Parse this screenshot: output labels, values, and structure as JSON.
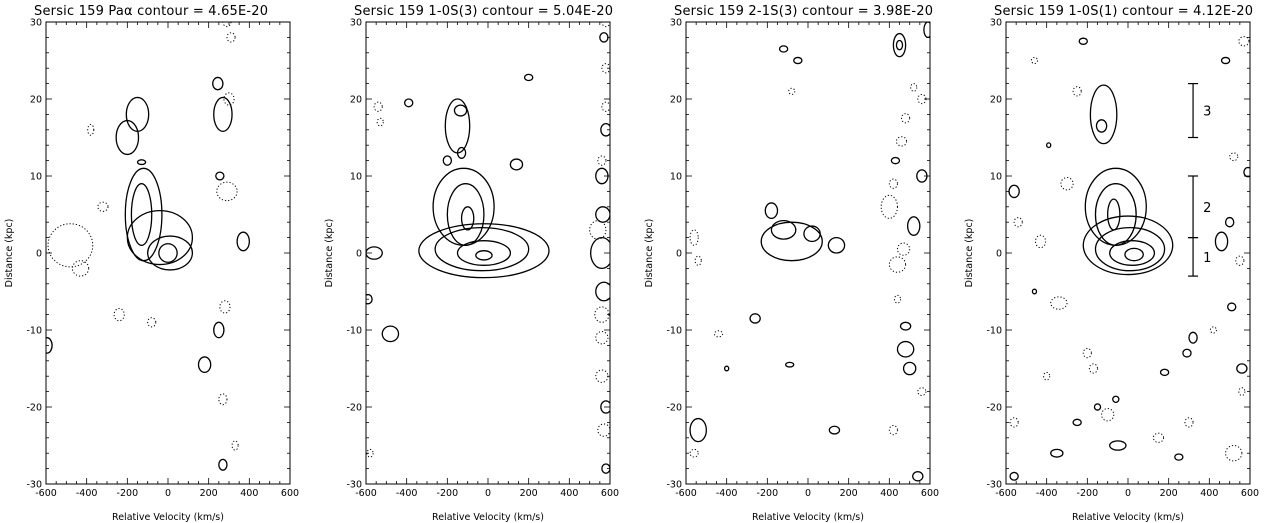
{
  "chart_data": [
    {
      "type": "contour",
      "title": "Sersic 159 Paα contour =  4.65E-20",
      "xlabel": "Relative Velocity (km/s)",
      "ylabel": "Distance (kpc)",
      "xlim": [
        -600,
        600
      ],
      "ylim": [
        -30,
        30
      ],
      "xticks": [
        "-600",
        "-400",
        "-200",
        "0",
        "200",
        "400",
        "600"
      ],
      "yticks": [
        "30",
        "20",
        "10",
        "0",
        "-10",
        "-20",
        "-30"
      ],
      "solid_contours": [
        {
          "cx": 0,
          "cy": 0,
          "rx": 45,
          "ry": 1.2
        },
        {
          "cx": 10,
          "cy": 0,
          "rx": 110,
          "ry": 2.2
        },
        {
          "cx": -40,
          "cy": 2,
          "rx": 160,
          "ry": 3.5
        },
        {
          "cx": -130,
          "cy": 5,
          "rx": 50,
          "ry": 4
        },
        {
          "cx": -120,
          "cy": 5,
          "rx": 90,
          "ry": 6
        },
        {
          "cx": -150,
          "cy": 18,
          "rx": 55,
          "ry": 2.2
        },
        {
          "cx": -200,
          "cy": 15,
          "rx": 55,
          "ry": 2.2
        },
        {
          "cx": -130,
          "cy": 11.8,
          "rx": 20,
          "ry": 0.3
        },
        {
          "cx": 270,
          "cy": 18,
          "rx": 45,
          "ry": 2.2
        },
        {
          "cx": 245,
          "cy": 22,
          "rx": 25,
          "ry": 0.8
        },
        {
          "cx": 255,
          "cy": 10,
          "rx": 20,
          "ry": 0.5
        },
        {
          "cx": 370,
          "cy": 1.5,
          "rx": 30,
          "ry": 1.2
        },
        {
          "cx": 250,
          "cy": -10,
          "rx": 25,
          "ry": 1
        },
        {
          "cx": 180,
          "cy": -14.5,
          "rx": 30,
          "ry": 1
        },
        {
          "cx": 270,
          "cy": -27.5,
          "rx": 20,
          "ry": 0.7
        },
        {
          "cx": -595,
          "cy": -12,
          "rx": 25,
          "ry": 1
        }
      ],
      "dotted_contours": [
        {
          "cx": -480,
          "cy": 1,
          "rx": 110,
          "ry": 2.8
        },
        {
          "cx": -430,
          "cy": -2,
          "rx": 40,
          "ry": 1
        },
        {
          "cx": -320,
          "cy": 6,
          "rx": 25,
          "ry": 0.6
        },
        {
          "cx": -380,
          "cy": 16,
          "rx": 15,
          "ry": 0.7
        },
        {
          "cx": -240,
          "cy": -8,
          "rx": 25,
          "ry": 0.8
        },
        {
          "cx": -80,
          "cy": -9,
          "rx": 20,
          "ry": 0.6
        },
        {
          "cx": 290,
          "cy": 8,
          "rx": 50,
          "ry": 1.2
        },
        {
          "cx": 300,
          "cy": 20,
          "rx": 25,
          "ry": 0.8
        },
        {
          "cx": 310,
          "cy": 28,
          "rx": 20,
          "ry": 0.6
        },
        {
          "cx": 290,
          "cy": 30,
          "rx": 20,
          "ry": 0.6
        },
        {
          "cx": 280,
          "cy": -7,
          "rx": 25,
          "ry": 0.8
        },
        {
          "cx": 270,
          "cy": -19,
          "rx": 20,
          "ry": 0.7
        },
        {
          "cx": 330,
          "cy": -25,
          "rx": 15,
          "ry": 0.6
        }
      ]
    },
    {
      "type": "contour",
      "title": "Sersic 159 1-0S(3) contour =  5.04E-20",
      "xlabel": "Relative Velocity (km/s)",
      "ylabel": "Distance (kpc)",
      "xlim": [
        -600,
        600
      ],
      "ylim": [
        -30,
        30
      ],
      "xticks": [
        "-600",
        "-400",
        "-200",
        "0",
        "200",
        "400",
        "600"
      ],
      "yticks": [
        "30",
        "20",
        "10",
        "0",
        "-10",
        "-20",
        "-30"
      ],
      "solid_contours": [
        {
          "cx": -20,
          "cy": -0.3,
          "rx": 40,
          "ry": 0.6
        },
        {
          "cx": -20,
          "cy": 0,
          "rx": 130,
          "ry": 1.6
        },
        {
          "cx": -30,
          "cy": 0.5,
          "rx": 230,
          "ry": 2.8
        },
        {
          "cx": -20,
          "cy": 0.3,
          "rx": 320,
          "ry": 3.5
        },
        {
          "cx": -100,
          "cy": 4.5,
          "rx": 30,
          "ry": 1.5
        },
        {
          "cx": -110,
          "cy": 5,
          "rx": 90,
          "ry": 4
        },
        {
          "cx": -120,
          "cy": 6,
          "rx": 150,
          "ry": 5
        },
        {
          "cx": -135,
          "cy": 18.5,
          "rx": 30,
          "ry": 0.7
        },
        {
          "cx": -150,
          "cy": 16.5,
          "rx": 60,
          "ry": 3.5
        },
        {
          "cx": -200,
          "cy": 12,
          "rx": 20,
          "ry": 0.6
        },
        {
          "cx": -130,
          "cy": 13,
          "rx": 20,
          "ry": 0.7
        },
        {
          "cx": 140,
          "cy": 11.5,
          "rx": 30,
          "ry": 0.7
        },
        {
          "cx": -390,
          "cy": 19.5,
          "rx": 20,
          "ry": 0.5
        },
        {
          "cx": 200,
          "cy": 22.8,
          "rx": 20,
          "ry": 0.4
        },
        {
          "cx": -560,
          "cy": 0,
          "rx": 40,
          "ry": 0.8
        },
        {
          "cx": -590,
          "cy": -6,
          "rx": 20,
          "ry": 0.6
        },
        {
          "cx": -480,
          "cy": -10.5,
          "rx": 40,
          "ry": 1
        },
        {
          "cx": 560,
          "cy": 0,
          "rx": 55,
          "ry": 2
        },
        {
          "cx": 570,
          "cy": -5,
          "rx": 40,
          "ry": 1.2
        },
        {
          "cx": 565,
          "cy": 5,
          "rx": 35,
          "ry": 1
        },
        {
          "cx": 560,
          "cy": 10,
          "rx": 30,
          "ry": 1
        },
        {
          "cx": 580,
          "cy": 16,
          "rx": 25,
          "ry": 0.8
        },
        {
          "cx": 570,
          "cy": 28,
          "rx": 20,
          "ry": 0.6
        },
        {
          "cx": 580,
          "cy": -20,
          "rx": 25,
          "ry": 0.8
        },
        {
          "cx": 580,
          "cy": -28,
          "rx": 20,
          "ry": 0.6
        }
      ],
      "dotted_contours": [
        {
          "cx": -540,
          "cy": 19,
          "rx": 20,
          "ry": 0.6
        },
        {
          "cx": -530,
          "cy": 17,
          "rx": 15,
          "ry": 0.5
        },
        {
          "cx": 540,
          "cy": 3,
          "rx": 40,
          "ry": 1.2
        },
        {
          "cx": 560,
          "cy": -8,
          "rx": 35,
          "ry": 1
        },
        {
          "cx": 560,
          "cy": -11,
          "rx": 30,
          "ry": 0.8
        },
        {
          "cx": 580,
          "cy": 24,
          "rx": 20,
          "ry": 0.6
        },
        {
          "cx": 580,
          "cy": 19,
          "rx": 20,
          "ry": 0.6
        },
        {
          "cx": 560,
          "cy": -16,
          "rx": 30,
          "ry": 0.8
        },
        {
          "cx": 570,
          "cy": -23,
          "rx": 30,
          "ry": 0.8
        },
        {
          "cx": 560,
          "cy": 12,
          "rx": 20,
          "ry": 0.6
        },
        {
          "cx": 580,
          "cy": 30,
          "rx": 20,
          "ry": 0.6
        },
        {
          "cx": -580,
          "cy": -26,
          "rx": 15,
          "ry": 0.5
        }
      ]
    },
    {
      "type": "contour",
      "title": "Sersic 159 2-1S(3) contour =  3.98E-20",
      "xlabel": "Relative Velocity (km/s)",
      "ylabel": "Distance (kpc)",
      "xlim": [
        -600,
        600
      ],
      "ylim": [
        -30,
        30
      ],
      "xticks": [
        "-600",
        "-400",
        "-200",
        "0",
        "200",
        "400",
        "600"
      ],
      "yticks": [
        "30",
        "20",
        "10",
        "0",
        "-10",
        "-20",
        "-30"
      ],
      "solid_contours": [
        {
          "cx": -80,
          "cy": 1.5,
          "rx": 150,
          "ry": 2.5
        },
        {
          "cx": -120,
          "cy": 3,
          "rx": 60,
          "ry": 1.2
        },
        {
          "cx": -180,
          "cy": 5.5,
          "rx": 30,
          "ry": 1
        },
        {
          "cx": 20,
          "cy": 2.5,
          "rx": 40,
          "ry": 1
        },
        {
          "cx": 140,
          "cy": 1,
          "rx": 40,
          "ry": 1
        },
        {
          "cx": 450,
          "cy": 27,
          "rx": 30,
          "ry": 1.5
        },
        {
          "cx": 450,
          "cy": 27,
          "rx": 15,
          "ry": 0.6
        },
        {
          "cx": -120,
          "cy": 26.5,
          "rx": 20,
          "ry": 0.4
        },
        {
          "cx": -50,
          "cy": 25,
          "rx": 20,
          "ry": 0.4
        },
        {
          "cx": 590,
          "cy": 29,
          "rx": 20,
          "ry": 1
        },
        {
          "cx": 430,
          "cy": 12,
          "rx": 20,
          "ry": 0.4
        },
        {
          "cx": 560,
          "cy": 10,
          "rx": 25,
          "ry": 0.8
        },
        {
          "cx": 520,
          "cy": 3.5,
          "rx": 30,
          "ry": 1.2
        },
        {
          "cx": 480,
          "cy": -12.5,
          "rx": 40,
          "ry": 1
        },
        {
          "cx": 500,
          "cy": -15,
          "rx": 30,
          "ry": 0.8
        },
        {
          "cx": 480,
          "cy": -9.5,
          "rx": 25,
          "ry": 0.5
        },
        {
          "cx": -260,
          "cy": -8.5,
          "rx": 25,
          "ry": 0.6
        },
        {
          "cx": -540,
          "cy": -23,
          "rx": 40,
          "ry": 1.5
        },
        {
          "cx": -90,
          "cy": -14.5,
          "rx": 20,
          "ry": 0.3
        },
        {
          "cx": 130,
          "cy": -23,
          "rx": 25,
          "ry": 0.5
        },
        {
          "cx": 540,
          "cy": -29,
          "rx": 25,
          "ry": 0.6
        },
        {
          "cx": -400,
          "cy": -15,
          "rx": 10,
          "ry": 0.3
        }
      ],
      "dotted_contours": [
        {
          "cx": 440,
          "cy": -1.5,
          "rx": 40,
          "ry": 1
        },
        {
          "cx": 470,
          "cy": 0.5,
          "rx": 30,
          "ry": 0.8
        },
        {
          "cx": 400,
          "cy": 6,
          "rx": 40,
          "ry": 1.5
        },
        {
          "cx": -560,
          "cy": 2,
          "rx": 20,
          "ry": 1
        },
        {
          "cx": -540,
          "cy": -1,
          "rx": 15,
          "ry": 0.6
        },
        {
          "cx": -440,
          "cy": -10.5,
          "rx": 20,
          "ry": 0.4
        },
        {
          "cx": 460,
          "cy": 14.5,
          "rx": 25,
          "ry": 0.6
        },
        {
          "cx": 480,
          "cy": 17.5,
          "rx": 20,
          "ry": 0.6
        },
        {
          "cx": 560,
          "cy": 20,
          "rx": 20,
          "ry": 0.6
        },
        {
          "cx": 420,
          "cy": 9,
          "rx": 20,
          "ry": 0.6
        },
        {
          "cx": 440,
          "cy": -6,
          "rx": 15,
          "ry": 0.5
        },
        {
          "cx": 560,
          "cy": -18,
          "rx": 20,
          "ry": 0.5
        },
        {
          "cx": 420,
          "cy": -23,
          "rx": 20,
          "ry": 0.6
        },
        {
          "cx": -560,
          "cy": -26,
          "rx": 20,
          "ry": 0.5
        },
        {
          "cx": 520,
          "cy": 21.5,
          "rx": 15,
          "ry": 0.5
        },
        {
          "cx": -80,
          "cy": 21,
          "rx": 15,
          "ry": 0.4
        }
      ]
    },
    {
      "type": "contour",
      "title": "Sersic 159 1-0S(1) contour =  4.12E-20",
      "xlabel": "Relative Velocity (km/s)",
      "ylabel": "Distance (kpc)",
      "xlim": [
        -600,
        600
      ],
      "ylim": [
        -30,
        30
      ],
      "xticks": [
        "-600",
        "-400",
        "-200",
        "0",
        "200",
        "400",
        "600"
      ],
      "yticks": [
        "30",
        "20",
        "10",
        "0",
        "-10",
        "-20",
        "-30"
      ],
      "solid_contours": [
        {
          "cx": 30,
          "cy": -0.2,
          "rx": 45,
          "ry": 0.8
        },
        {
          "cx": 20,
          "cy": 0,
          "rx": 110,
          "ry": 1.6
        },
        {
          "cx": 10,
          "cy": 0.5,
          "rx": 170,
          "ry": 2.8
        },
        {
          "cx": 0,
          "cy": 1,
          "rx": 220,
          "ry": 3.8
        },
        {
          "cx": -70,
          "cy": 5,
          "rx": 30,
          "ry": 2
        },
        {
          "cx": -60,
          "cy": 5,
          "rx": 100,
          "ry": 4
        },
        {
          "cx": -60,
          "cy": 6,
          "rx": 150,
          "ry": 5
        },
        {
          "cx": -120,
          "cy": 18,
          "rx": 65,
          "ry": 3.8
        },
        {
          "cx": -130,
          "cy": 16.5,
          "rx": 25,
          "ry": 0.8
        },
        {
          "cx": -220,
          "cy": 27.5,
          "rx": 20,
          "ry": 0.4
        },
        {
          "cx": 480,
          "cy": 25,
          "rx": 20,
          "ry": 0.4
        },
        {
          "cx": 460,
          "cy": 1.5,
          "rx": 30,
          "ry": 1.2
        },
        {
          "cx": 500,
          "cy": 4,
          "rx": 20,
          "ry": 0.6
        },
        {
          "cx": 590,
          "cy": 10.5,
          "rx": 20,
          "ry": 0.6
        },
        {
          "cx": -390,
          "cy": 14,
          "rx": 10,
          "ry": 0.3
        },
        {
          "cx": 510,
          "cy": -7,
          "rx": 20,
          "ry": 0.5
        },
        {
          "cx": 320,
          "cy": -11,
          "rx": 20,
          "ry": 0.7
        },
        {
          "cx": 290,
          "cy": -13,
          "rx": 20,
          "ry": 0.5
        },
        {
          "cx": 560,
          "cy": -15,
          "rx": 25,
          "ry": 0.6
        },
        {
          "cx": 180,
          "cy": -15.5,
          "rx": 20,
          "ry": 0.4
        },
        {
          "cx": -60,
          "cy": -19,
          "rx": 15,
          "ry": 0.4
        },
        {
          "cx": -150,
          "cy": -20,
          "rx": 15,
          "ry": 0.4
        },
        {
          "cx": -250,
          "cy": -22,
          "rx": 20,
          "ry": 0.4
        },
        {
          "cx": -50,
          "cy": -25,
          "rx": 40,
          "ry": 0.6
        },
        {
          "cx": -350,
          "cy": -26,
          "rx": 30,
          "ry": 0.5
        },
        {
          "cx": 250,
          "cy": -26.5,
          "rx": 20,
          "ry": 0.4
        },
        {
          "cx": -560,
          "cy": -29,
          "rx": 20,
          "ry": 0.5
        },
        {
          "cx": -460,
          "cy": -5,
          "rx": 10,
          "ry": 0.3
        },
        {
          "cx": -560,
          "cy": 8,
          "rx": 25,
          "ry": 0.8
        }
      ],
      "dotted_contours": [
        {
          "cx": -340,
          "cy": -6.5,
          "rx": 40,
          "ry": 0.8
        },
        {
          "cx": -300,
          "cy": 9,
          "rx": 30,
          "ry": 0.8
        },
        {
          "cx": -460,
          "cy": 25,
          "rx": 15,
          "ry": 0.4
        },
        {
          "cx": 520,
          "cy": 12.5,
          "rx": 20,
          "ry": 0.5
        },
        {
          "cx": 570,
          "cy": 27.5,
          "rx": 25,
          "ry": 0.6
        },
        {
          "cx": 550,
          "cy": -1,
          "rx": 20,
          "ry": 0.6
        },
        {
          "cx": -430,
          "cy": 1.5,
          "rx": 25,
          "ry": 0.8
        },
        {
          "cx": -540,
          "cy": 4,
          "rx": 20,
          "ry": 0.6
        },
        {
          "cx": 420,
          "cy": -10,
          "rx": 15,
          "ry": 0.4
        },
        {
          "cx": -200,
          "cy": -13,
          "rx": 20,
          "ry": 0.6
        },
        {
          "cx": -170,
          "cy": -15,
          "rx": 20,
          "ry": 0.6
        },
        {
          "cx": -400,
          "cy": -16,
          "rx": 15,
          "ry": 0.5
        },
        {
          "cx": -100,
          "cy": -21,
          "rx": 30,
          "ry": 0.8
        },
        {
          "cx": 300,
          "cy": -22,
          "rx": 20,
          "ry": 0.6
        },
        {
          "cx": 150,
          "cy": -24,
          "rx": 25,
          "ry": 0.6
        },
        {
          "cx": 520,
          "cy": -26,
          "rx": 40,
          "ry": 1
        },
        {
          "cx": -560,
          "cy": -22,
          "rx": 20,
          "ry": 0.6
        },
        {
          "cx": 560,
          "cy": -18,
          "rx": 15,
          "ry": 0.5
        },
        {
          "cx": -250,
          "cy": 21,
          "rx": 20,
          "ry": 0.6
        }
      ],
      "region_markers": [
        {
          "label": "3",
          "y_from": 15,
          "y_to": 22
        },
        {
          "label": "2",
          "y_from": 2,
          "y_to": 10
        },
        {
          "label": "1",
          "y_from": -3,
          "y_to": 2
        }
      ],
      "region_marker_velocity": 320
    }
  ]
}
